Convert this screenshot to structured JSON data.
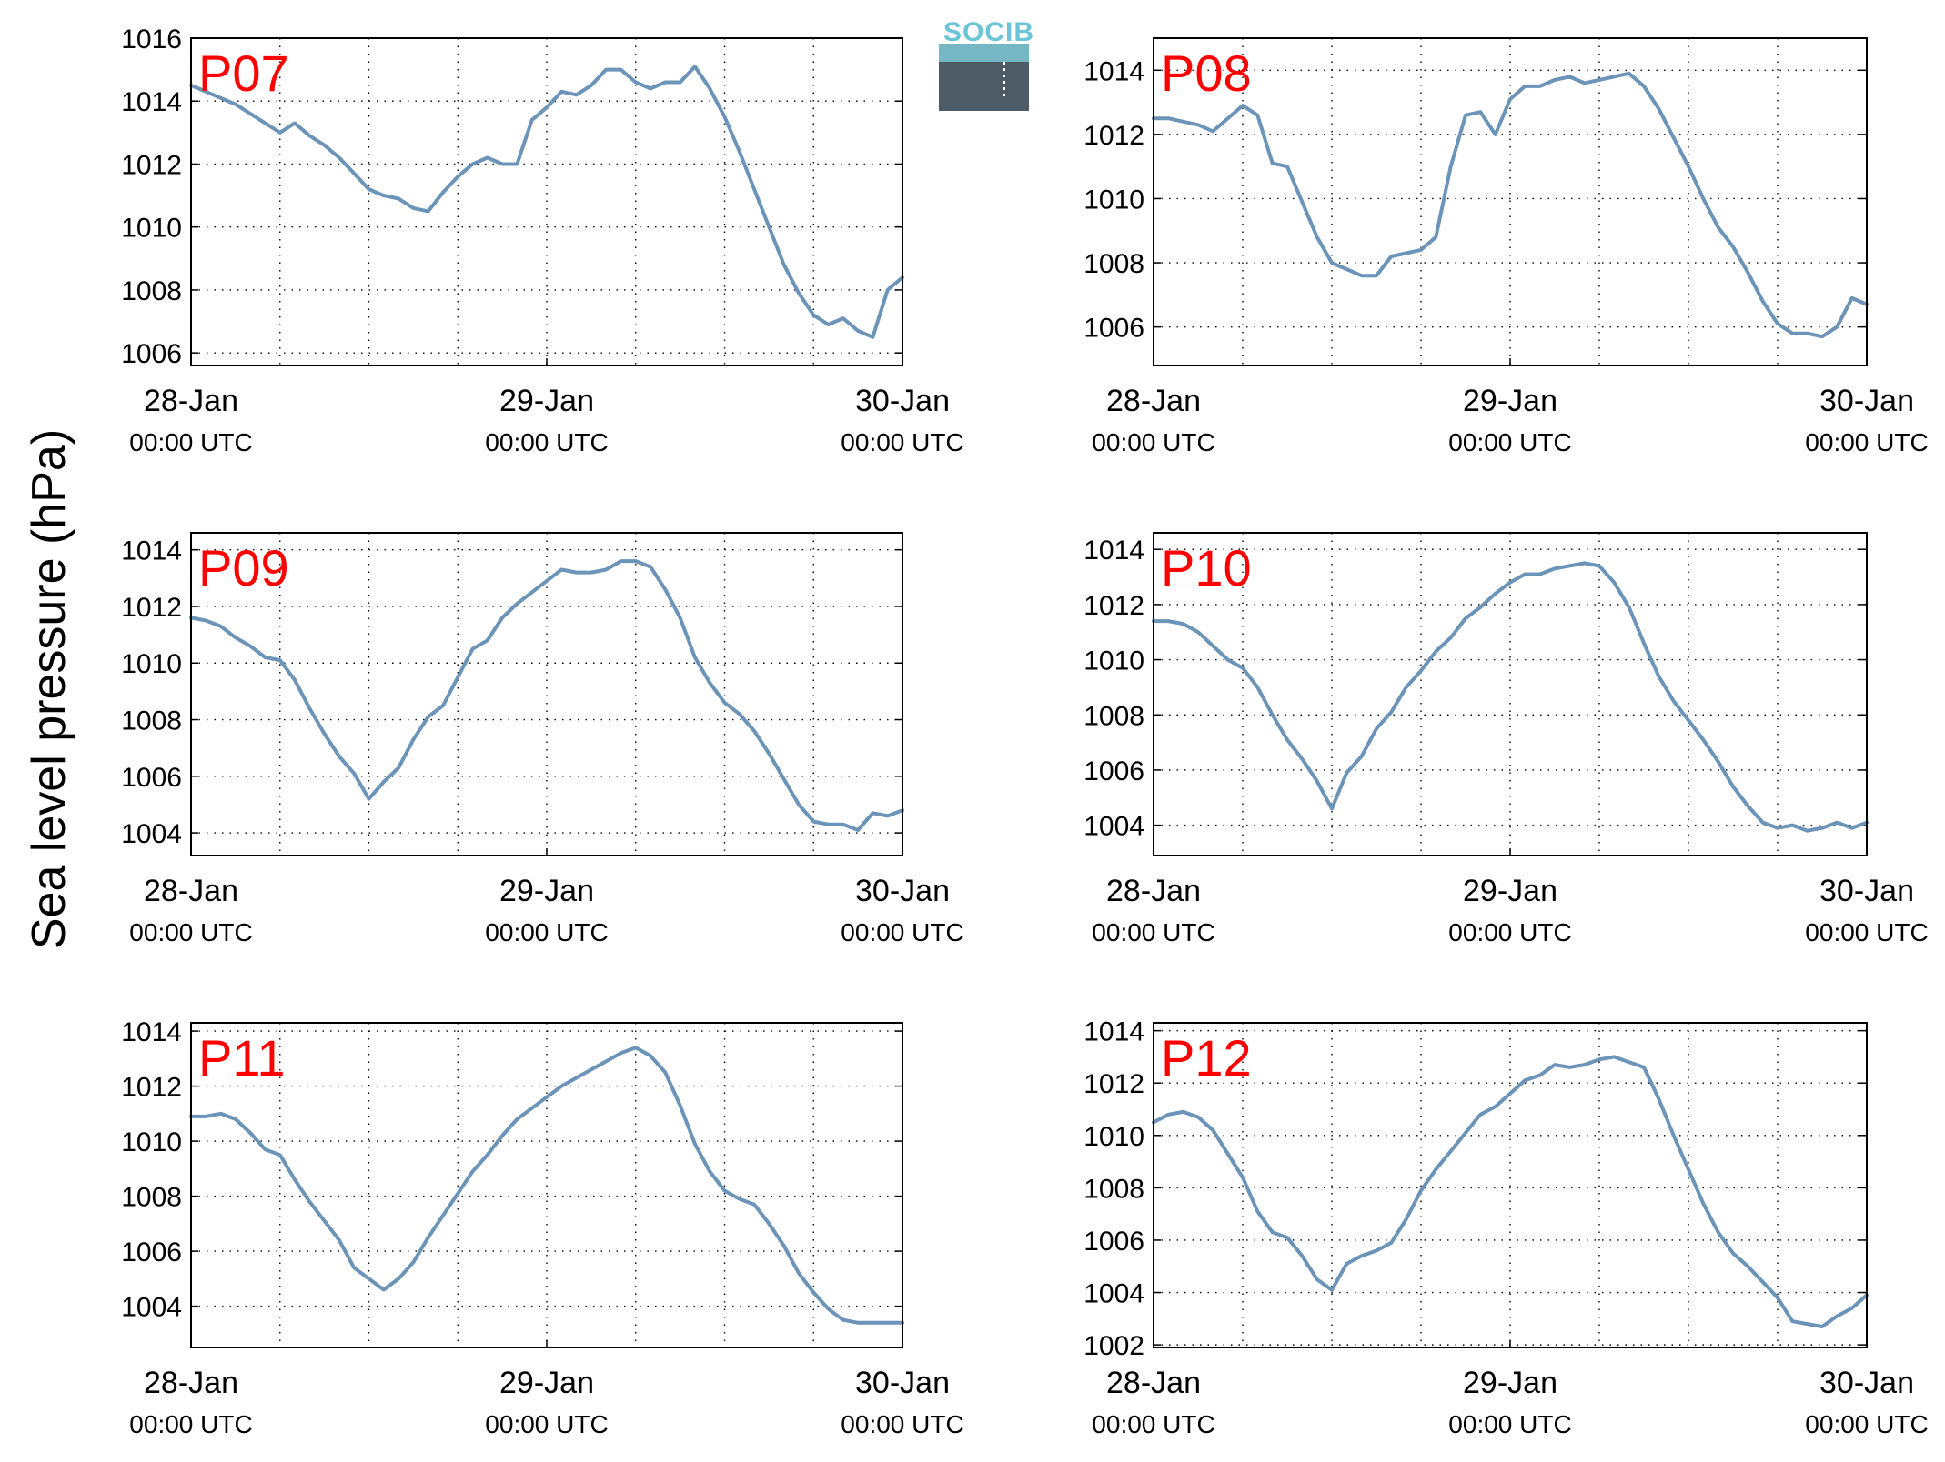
{
  "figure": {
    "ylabel": "Sea level pressure (hPa)",
    "logo": {
      "text": "SOCIB"
    },
    "line_color": "#6b94b8",
    "label_color": "#ff0000"
  },
  "chart_data": [
    {
      "type": "line",
      "label": "P07",
      "ylim": [
        1005.6,
        1016
      ],
      "yticks": [
        1006,
        1008,
        1010,
        1012,
        1014,
        1016
      ],
      "xlim": [
        "2022-01-28 00:00",
        "2022-01-30 00:00"
      ],
      "xticks": [
        {
          "date": "28-Jan",
          "time": "00:00 UTC"
        },
        {
          "date": "29-Jan",
          "time": "00:00 UTC"
        },
        {
          "date": "30-Jan",
          "time": "00:00 UTC"
        }
      ],
      "grid": true,
      "x_hours": [
        0,
        1,
        2,
        3,
        4,
        5,
        6,
        7,
        8,
        9,
        10,
        11,
        12,
        13,
        14,
        15,
        16,
        17,
        18,
        19,
        20,
        21,
        22,
        23,
        24,
        25,
        26,
        27,
        28,
        29,
        30,
        31,
        32,
        33,
        34,
        35,
        36,
        37,
        38,
        39,
        40,
        41,
        42,
        43,
        44,
        45,
        46,
        47,
        48
      ],
      "y": [
        1014.5,
        1014.3,
        1014.1,
        1013.9,
        1013.6,
        1013.3,
        1013.0,
        1013.3,
        1012.9,
        1012.6,
        1012.2,
        1011.7,
        1011.2,
        1011.0,
        1010.9,
        1010.6,
        1010.5,
        1011.1,
        1011.6,
        1012.0,
        1012.2,
        1012.0,
        1012.0,
        1013.4,
        1013.8,
        1014.3,
        1014.2,
        1014.5,
        1015.0,
        1015.0,
        1014.6,
        1014.4,
        1014.6,
        1014.6,
        1015.1,
        1014.4,
        1013.5,
        1012.4,
        1011.2,
        1010.0,
        1008.8,
        1007.9,
        1007.2,
        1006.9,
        1007.1,
        1006.7,
        1006.5,
        1008.0,
        1008.4
      ]
    },
    {
      "type": "line",
      "label": "P08",
      "ylim": [
        1004.8,
        1015
      ],
      "yticks": [
        1006,
        1008,
        1010,
        1012,
        1014
      ],
      "xlim": [
        "2022-01-28 00:00",
        "2022-01-30 00:00"
      ],
      "xticks": [
        {
          "date": "28-Jan",
          "time": "00:00 UTC"
        },
        {
          "date": "29-Jan",
          "time": "00:00 UTC"
        },
        {
          "date": "30-Jan",
          "time": "00:00 UTC"
        }
      ],
      "grid": true,
      "x_hours": [
        0,
        1,
        2,
        3,
        4,
        5,
        6,
        7,
        8,
        9,
        10,
        11,
        12,
        13,
        14,
        15,
        16,
        17,
        18,
        19,
        20,
        21,
        22,
        23,
        24,
        25,
        26,
        27,
        28,
        29,
        30,
        31,
        32,
        33,
        34,
        35,
        36,
        37,
        38,
        39,
        40,
        41,
        42,
        43,
        44,
        45,
        46,
        47,
        48
      ],
      "y": [
        1012.5,
        1012.5,
        1012.4,
        1012.3,
        1012.1,
        1012.5,
        1012.9,
        1012.6,
        1011.1,
        1011.0,
        1009.9,
        1008.8,
        1008.0,
        1007.8,
        1007.6,
        1007.6,
        1008.2,
        1008.3,
        1008.4,
        1008.8,
        1011.0,
        1012.6,
        1012.7,
        1012.0,
        1013.1,
        1013.5,
        1013.5,
        1013.7,
        1013.8,
        1013.6,
        1013.7,
        1013.8,
        1013.9,
        1013.5,
        1012.8,
        1011.9,
        1011.0,
        1010.0,
        1009.1,
        1008.5,
        1007.7,
        1006.8,
        1006.1,
        1005.8,
        1005.8,
        1005.7,
        1006.0,
        1006.9,
        1006.7
      ]
    },
    {
      "type": "line",
      "label": "P09",
      "ylim": [
        1003.2,
        1014.6
      ],
      "yticks": [
        1004,
        1006,
        1008,
        1010,
        1012,
        1014
      ],
      "xlim": [
        "2022-01-28 00:00",
        "2022-01-30 00:00"
      ],
      "xticks": [
        {
          "date": "28-Jan",
          "time": "00:00 UTC"
        },
        {
          "date": "29-Jan",
          "time": "00:00 UTC"
        },
        {
          "date": "30-Jan",
          "time": "00:00 UTC"
        }
      ],
      "grid": true,
      "x_hours": [
        0,
        1,
        2,
        3,
        4,
        5,
        6,
        7,
        8,
        9,
        10,
        11,
        12,
        13,
        14,
        15,
        16,
        17,
        18,
        19,
        20,
        21,
        22,
        23,
        24,
        25,
        26,
        27,
        28,
        29,
        30,
        31,
        32,
        33,
        34,
        35,
        36,
        37,
        38,
        39,
        40,
        41,
        42,
        43,
        44,
        45,
        46,
        47,
        48
      ],
      "y": [
        1011.6,
        1011.5,
        1011.3,
        1010.9,
        1010.6,
        1010.2,
        1010.1,
        1009.4,
        1008.4,
        1007.5,
        1006.7,
        1006.1,
        1005.2,
        1005.8,
        1006.3,
        1007.3,
        1008.1,
        1008.5,
        1009.5,
        1010.5,
        1010.8,
        1011.6,
        1012.1,
        1012.5,
        1012.9,
        1013.3,
        1013.2,
        1013.2,
        1013.3,
        1013.6,
        1013.6,
        1013.4,
        1012.6,
        1011.6,
        1010.2,
        1009.3,
        1008.6,
        1008.2,
        1007.6,
        1006.8,
        1005.9,
        1005.0,
        1004.4,
        1004.3,
        1004.3,
        1004.1,
        1004.7,
        1004.6,
        1004.8
      ]
    },
    {
      "type": "line",
      "label": "P10",
      "ylim": [
        1002.9,
        1014.6
      ],
      "yticks": [
        1004,
        1006,
        1008,
        1010,
        1012,
        1014
      ],
      "xlim": [
        "2022-01-28 00:00",
        "2022-01-30 00:00"
      ],
      "xticks": [
        {
          "date": "28-Jan",
          "time": "00:00 UTC"
        },
        {
          "date": "29-Jan",
          "time": "00:00 UTC"
        },
        {
          "date": "30-Jan",
          "time": "00:00 UTC"
        }
      ],
      "grid": true,
      "x_hours": [
        0,
        1,
        2,
        3,
        4,
        5,
        6,
        7,
        8,
        9,
        10,
        11,
        12,
        13,
        14,
        15,
        16,
        17,
        18,
        19,
        20,
        21,
        22,
        23,
        24,
        25,
        26,
        27,
        28,
        29,
        30,
        31,
        32,
        33,
        34,
        35,
        36,
        37,
        38,
        39,
        40,
        41,
        42,
        43,
        44,
        45,
        46,
        47,
        48
      ],
      "y": [
        1011.4,
        1011.4,
        1011.3,
        1011.0,
        1010.5,
        1010.0,
        1009.7,
        1009.0,
        1008.0,
        1007.1,
        1006.4,
        1005.6,
        1004.6,
        1005.9,
        1006.5,
        1007.5,
        1008.1,
        1009.0,
        1009.6,
        1010.3,
        1010.8,
        1011.5,
        1011.9,
        1012.4,
        1012.8,
        1013.1,
        1013.1,
        1013.3,
        1013.4,
        1013.5,
        1013.4,
        1012.8,
        1011.9,
        1010.6,
        1009.4,
        1008.5,
        1007.8,
        1007.1,
        1006.3,
        1005.4,
        1004.7,
        1004.1,
        1003.9,
        1004.0,
        1003.8,
        1003.9,
        1004.1,
        1003.9,
        1004.1
      ]
    },
    {
      "type": "line",
      "label": "P11",
      "ylim": [
        1002.5,
        1014.3
      ],
      "yticks": [
        1004,
        1006,
        1008,
        1010,
        1012,
        1014
      ],
      "xlim": [
        "2022-01-28 00:00",
        "2022-01-30 00:00"
      ],
      "xticks": [
        {
          "date": "28-Jan",
          "time": "00:00 UTC"
        },
        {
          "date": "29-Jan",
          "time": "00:00 UTC"
        },
        {
          "date": "30-Jan",
          "time": "00:00 UTC"
        }
      ],
      "grid": true,
      "x_hours": [
        0,
        1,
        2,
        3,
        4,
        5,
        6,
        7,
        8,
        9,
        10,
        11,
        12,
        13,
        14,
        15,
        16,
        17,
        18,
        19,
        20,
        21,
        22,
        23,
        24,
        25,
        26,
        27,
        28,
        29,
        30,
        31,
        32,
        33,
        34,
        35,
        36,
        37,
        38,
        39,
        40,
        41,
        42,
        43,
        44,
        45,
        46,
        47,
        48
      ],
      "y": [
        1010.9,
        1010.9,
        1011.0,
        1010.8,
        1010.3,
        1009.7,
        1009.5,
        1008.6,
        1007.8,
        1007.1,
        1006.4,
        1005.4,
        1005.0,
        1004.6,
        1005.0,
        1005.6,
        1006.5,
        1007.3,
        1008.1,
        1008.9,
        1009.5,
        1010.2,
        1010.8,
        1011.2,
        1011.6,
        1012.0,
        1012.3,
        1012.6,
        1012.9,
        1013.2,
        1013.4,
        1013.1,
        1012.5,
        1011.3,
        1009.9,
        1008.9,
        1008.2,
        1007.9,
        1007.7,
        1007.0,
        1006.2,
        1005.2,
        1004.5,
        1003.9,
        1003.5,
        1003.4,
        1003.4,
        1003.4,
        1003.4
      ]
    },
    {
      "type": "line",
      "label": "P12",
      "ylim": [
        1001.9,
        1014.3
      ],
      "yticks": [
        1002,
        1004,
        1006,
        1008,
        1010,
        1012,
        1014
      ],
      "xlim": [
        "2022-01-28 00:00",
        "2022-01-30 00:00"
      ],
      "xticks": [
        {
          "date": "28-Jan",
          "time": "00:00 UTC"
        },
        {
          "date": "29-Jan",
          "time": "00:00 UTC"
        },
        {
          "date": "30-Jan",
          "time": "00:00 UTC"
        }
      ],
      "grid": true,
      "x_hours": [
        0,
        1,
        2,
        3,
        4,
        5,
        6,
        7,
        8,
        9,
        10,
        11,
        12,
        13,
        14,
        15,
        16,
        17,
        18,
        19,
        20,
        21,
        22,
        23,
        24,
        25,
        26,
        27,
        28,
        29,
        30,
        31,
        32,
        33,
        34,
        35,
        36,
        37,
        38,
        39,
        40,
        41,
        42,
        43,
        44,
        45,
        46,
        47,
        48
      ],
      "y": [
        1010.5,
        1010.8,
        1010.9,
        1010.7,
        1010.2,
        1009.3,
        1008.4,
        1007.1,
        1006.3,
        1006.1,
        1005.4,
        1004.5,
        1004.1,
        1005.1,
        1005.4,
        1005.6,
        1005.9,
        1006.8,
        1007.9,
        1008.7,
        1009.4,
        1010.1,
        1010.8,
        1011.1,
        1011.6,
        1012.1,
        1012.3,
        1012.7,
        1012.6,
        1012.7,
        1012.9,
        1013.0,
        1012.8,
        1012.6,
        1011.4,
        1010.0,
        1008.7,
        1007.4,
        1006.3,
        1005.5,
        1005.0,
        1004.4,
        1003.8,
        1002.9,
        1002.8,
        1002.7,
        1003.1,
        1003.4,
        1003.9
      ]
    }
  ]
}
